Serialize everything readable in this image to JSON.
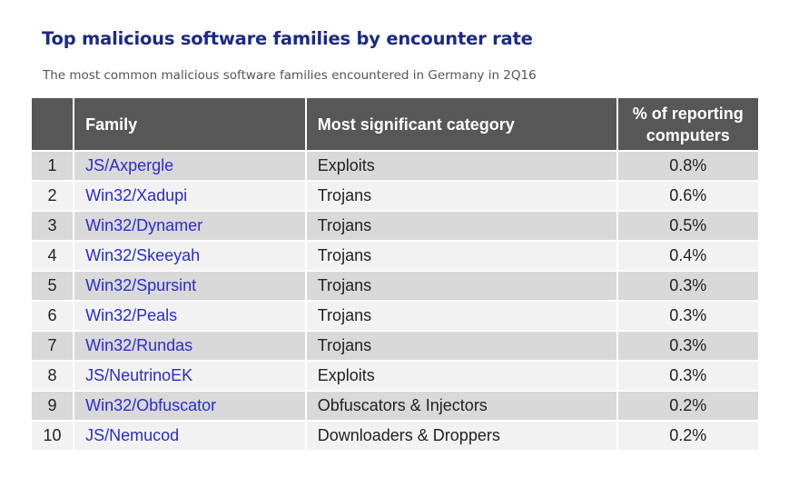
{
  "title": "Top malicious software families by encounter rate",
  "subtitle": "The most common malicious software families encountered in Germany in 2Q16",
  "table": {
    "headers": {
      "rank": "",
      "family": "Family",
      "category": "Most significant category",
      "pct_line1": "% of reporting",
      "pct_line2": "computers"
    },
    "rows": [
      {
        "rank": "1",
        "family": "JS/Axpergle",
        "category": "Exploits",
        "pct": "0.8%"
      },
      {
        "rank": "2",
        "family": "Win32/Xadupi",
        "category": "Trojans",
        "pct": "0.6%"
      },
      {
        "rank": "3",
        "family": "Win32/Dynamer",
        "category": "Trojans",
        "pct": "0.5%"
      },
      {
        "rank": "4",
        "family": "Win32/Skeeyah",
        "category": "Trojans",
        "pct": "0.4%"
      },
      {
        "rank": "5",
        "family": "Win32/Spursint",
        "category": "Trojans",
        "pct": "0.3%"
      },
      {
        "rank": "6",
        "family": "Win32/Peals",
        "category": "Trojans",
        "pct": "0.3%"
      },
      {
        "rank": "7",
        "family": "Win32/Rundas",
        "category": "Trojans",
        "pct": "0.3%"
      },
      {
        "rank": "8",
        "family": "JS/NeutrinoEK",
        "category": "Exploits",
        "pct": "0.3%"
      },
      {
        "rank": "9",
        "family": "Win32/Obfuscator",
        "category": "Obfuscators & Injectors",
        "pct": "0.2%"
      },
      {
        "rank": "10",
        "family": "JS/Nemucod",
        "category": "Downloaders & Droppers",
        "pct": "0.2%"
      }
    ]
  }
}
